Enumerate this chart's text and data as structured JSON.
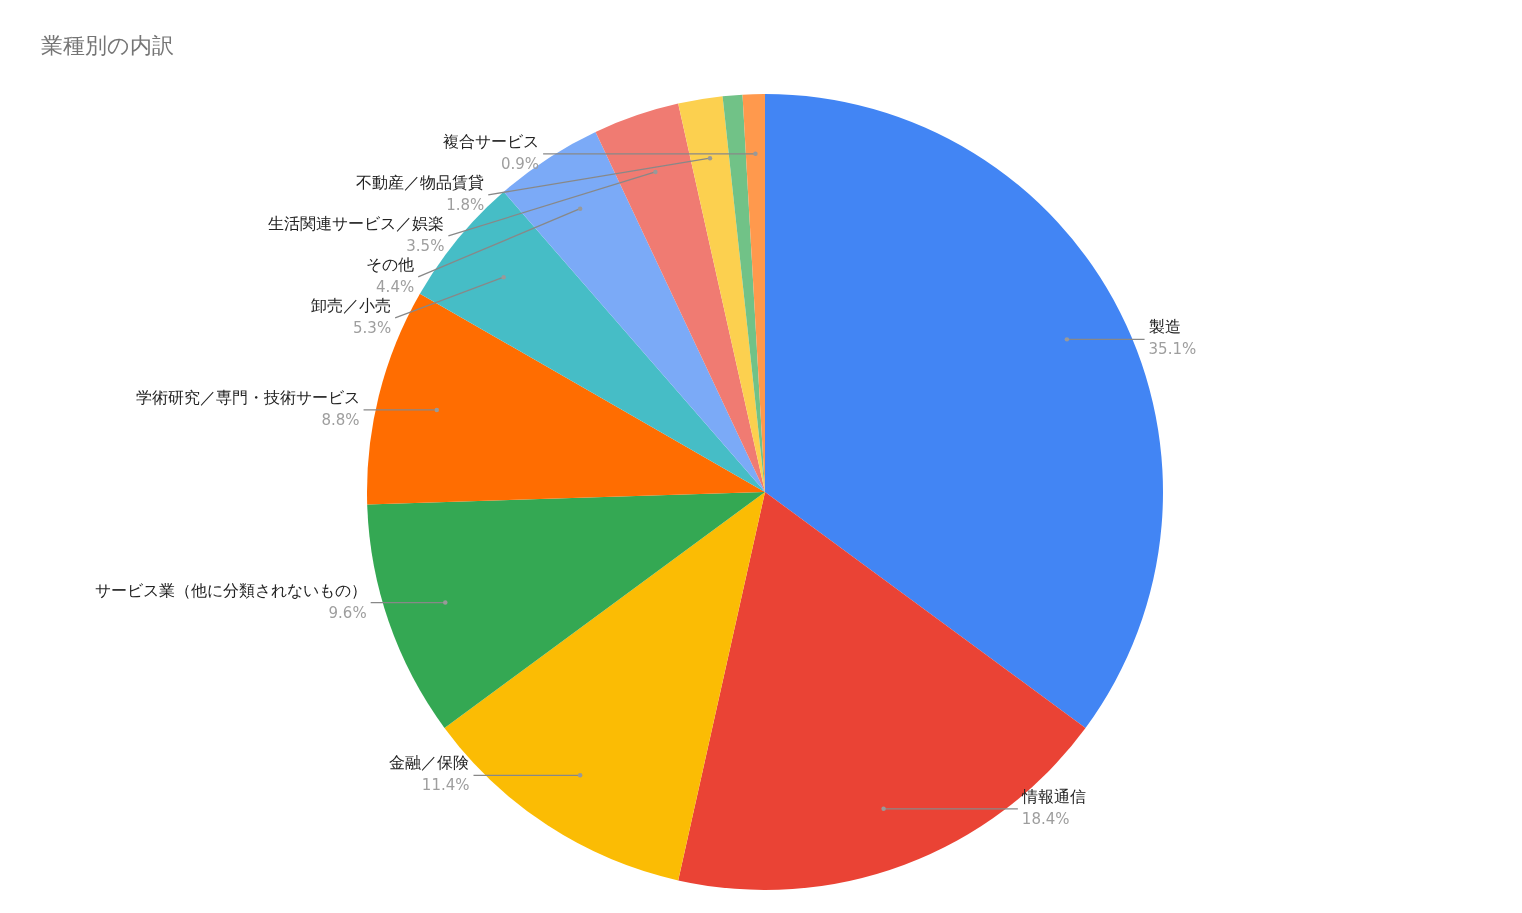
{
  "chart_data": {
    "type": "pie",
    "title": "業種別の内訳",
    "categories": [
      "製造",
      "情報通信",
      "金融／保険",
      "サービス業（他に分類されないもの）",
      "学術研究／専門・技術サービス",
      "卸売／小売",
      "その他",
      "生活関連サービス／娯楽",
      "不動産／物品賃貸",
      null,
      "複合サービス"
    ],
    "values": [
      35.1,
      18.4,
      11.4,
      9.6,
      8.8,
      5.3,
      4.4,
      3.5,
      1.8,
      0.8,
      0.9
    ],
    "value_labels": [
      "35.1%",
      "18.4%",
      "11.4%",
      "9.6%",
      "8.8%",
      "5.3%",
      "4.4%",
      "3.5%",
      "1.8%",
      null,
      "0.9%"
    ],
    "colors": [
      "#4285f4",
      "#ea4335",
      "#fbbc04",
      "#34a853",
      "#ff6d01",
      "#46bdc6",
      "#7baaf7",
      "#f07b72",
      "#fcd04f",
      "#71c287",
      "#ff994d"
    ],
    "legend": false
  }
}
